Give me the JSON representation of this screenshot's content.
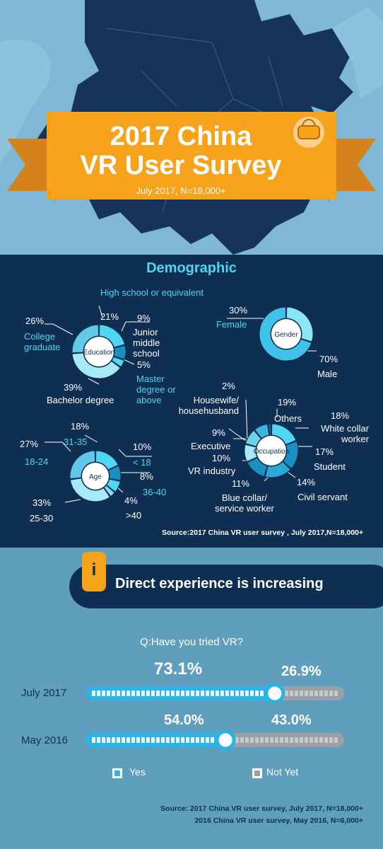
{
  "header": {
    "title_line1": "2017 China",
    "title_line2": "VR User Survey",
    "subtitle": "July 2017, N=18,000+",
    "colors": {
      "map": "#16345a",
      "banner": "#f7a21b",
      "ribbon": "#d4831c"
    }
  },
  "demographic": {
    "title": "Demographic",
    "source": "Source:2017 China VR user survey , July 2017,N=18,000+"
  },
  "chart_data": [
    {
      "type": "pie",
      "title": "Education",
      "categories": [
        "High school or equivalent",
        "Junior middle school",
        "Master degree or above",
        "Bachelor degree",
        "College graduate"
      ],
      "values": [
        21,
        9,
        5,
        39,
        26
      ],
      "labels": {
        "high_school": "High school or equivalent",
        "junior": "Junior middle school",
        "master": "Master degree or above",
        "bachelor": "Bachelor degree",
        "college": "College graduate"
      },
      "pcts": {
        "high_school": "21%",
        "junior": "9%",
        "master": "5%",
        "bachelor": "39%",
        "college": "26%"
      }
    },
    {
      "type": "pie",
      "title": "Gender",
      "categories": [
        "Female",
        "Male"
      ],
      "values": [
        30,
        70
      ],
      "labels": {
        "female": "Female",
        "male": "Male"
      },
      "pcts": {
        "female": "30%",
        "male": "70%"
      }
    },
    {
      "type": "pie",
      "title": "Age",
      "categories": [
        "31-35",
        "< 18",
        "36-40",
        ">40",
        "25-30",
        "18-24"
      ],
      "values": [
        18,
        10,
        8,
        4,
        33,
        27
      ],
      "labels": {
        "a31": "31-35",
        "u18": "< 18",
        "a36": "36-40",
        "o40": ">40",
        "a25": "25-30",
        "a18": "18-24"
      },
      "pcts": {
        "a31": "18%",
        "u18": "10%",
        "a36": "8%",
        "o40": "4%",
        "a25": "33%",
        "a18": "27%"
      }
    },
    {
      "type": "pie",
      "title": "Occupation",
      "categories": [
        "Others",
        "White collar worker",
        "Student",
        "Civil servant",
        "Blue collar/ service worker",
        "VR industry",
        "Executive",
        "Housewife/ househusband"
      ],
      "values": [
        19,
        18,
        17,
        14,
        11,
        10,
        9,
        2
      ],
      "labels": {
        "others": "Others",
        "white": "White collar worker",
        "student": "Student",
        "civil": "Civil servant",
        "blue": "Blue collar/ service worker",
        "vr": "VR industry",
        "executive": "Executive",
        "housewife": "Housewife/ househusband"
      },
      "pcts": {
        "others": "19%",
        "white": "18%",
        "student": "17%",
        "civil": "14%",
        "blue": "11%",
        "vr": "10%",
        "executive": "9%",
        "housewife": "2%"
      }
    },
    {
      "type": "bar",
      "title": "Q:Have you tried VR?",
      "categories": [
        "July 2017",
        "May 2016"
      ],
      "series": [
        {
          "name": "Yes",
          "values": [
            73.1,
            54.0
          ]
        },
        {
          "name": "Not Yet",
          "values": [
            26.9,
            43.0
          ]
        }
      ],
      "value_labels": {
        "yes": [
          "73.1%",
          "54.0%"
        ],
        "no": [
          "26.9%",
          "43.0%"
        ]
      },
      "colors": {
        "Yes": "#2ab3e6",
        "Not Yet": "#9aa0a6"
      }
    }
  ],
  "experience": {
    "badge": "i",
    "title": "Direct experience is increasing",
    "legend_yes": "Yes",
    "legend_no": "Not Yet",
    "source_line1": "Source: 2017 China VR user survey, July 2017, N=18,000+",
    "source_line2": "2016 China VR user survey, May 2016, N=6,000+"
  }
}
